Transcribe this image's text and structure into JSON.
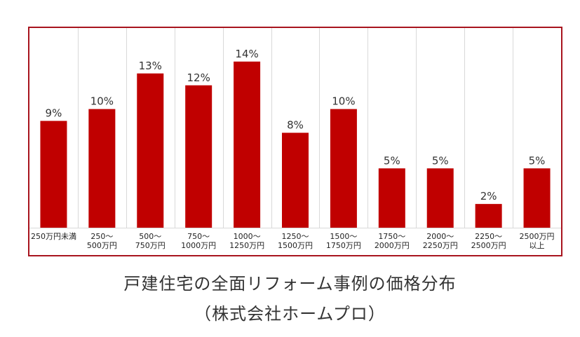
{
  "chart_data": {
    "type": "bar",
    "categories": [
      [
        "250万円未満"
      ],
      [
        "250〜",
        "500万円"
      ],
      [
        "500〜",
        "750万円"
      ],
      [
        "750〜",
        "1000万円"
      ],
      [
        "1000〜",
        "1250万円"
      ],
      [
        "1250〜",
        "1500万円"
      ],
      [
        "1500〜",
        "1750万円"
      ],
      [
        "1750〜",
        "2000万円"
      ],
      [
        "2000〜",
        "2250万円"
      ],
      [
        "2250〜",
        "2500万円"
      ],
      [
        "2500万円",
        "以上"
      ]
    ],
    "values": [
      9,
      10,
      13,
      12,
      14,
      8,
      10,
      5,
      5,
      2,
      5
    ],
    "value_labels": [
      "9%",
      "10%",
      "13%",
      "12%",
      "14%",
      "8%",
      "10%",
      "5%",
      "5%",
      "2%",
      "5%"
    ],
    "ylim": [
      0,
      16
    ],
    "grid": "vertical separators",
    "colors": {
      "bar": "#c00000",
      "frame": "#a8141e",
      "grid": "#d9d9d9",
      "text": "#333333"
    }
  },
  "caption": {
    "line1": "戸建住宅の全面リフォーム事例の価格分布",
    "line2": "（株式会社ホームプロ）"
  }
}
